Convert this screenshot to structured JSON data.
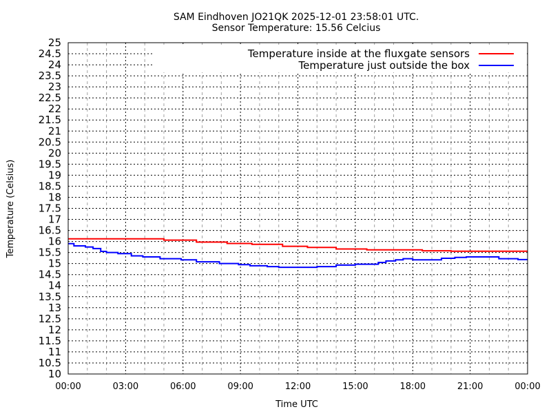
{
  "chart_data": {
    "type": "line",
    "title": "SAM Eindhoven JO21QK 2025-12-01 23:58:01 UTC.",
    "subtitle": "Sensor Temperature: 15.56 Celcius",
    "xlabel": "Time UTC",
    "ylabel": "Temperature (Celsius)",
    "xlim": [
      0,
      24
    ],
    "ylim": [
      10,
      25
    ],
    "x_ticks": [
      {
        "value": 0,
        "label": "00:00"
      },
      {
        "value": 3,
        "label": "03:00"
      },
      {
        "value": 6,
        "label": "06:00"
      },
      {
        "value": 9,
        "label": "09:00"
      },
      {
        "value": 12,
        "label": "12:00"
      },
      {
        "value": 15,
        "label": "15:00"
      },
      {
        "value": 18,
        "label": "18:00"
      },
      {
        "value": 21,
        "label": "21:00"
      },
      {
        "value": 24,
        "label": "00:00"
      }
    ],
    "y_ticks": [
      "10",
      "10.5",
      "11",
      "11.5",
      "12",
      "12.5",
      "13",
      "13.5",
      "14",
      "14.5",
      "15",
      "15.5",
      "16",
      "16.5",
      "17",
      "17.5",
      "18",
      "18.5",
      "19",
      "19.5",
      "20",
      "20.5",
      "21",
      "21.5",
      "22",
      "22.5",
      "23",
      "23.5",
      "24",
      "24.5",
      "25"
    ],
    "grid": true,
    "legend_position": "top-right",
    "series": [
      {
        "name": "Temperature inside at the fluxgate sensors",
        "color": "#ff0000",
        "x": [
          0,
          5.0,
          6.7,
          8.3,
          9.6,
          11.2,
          12.5,
          14.0,
          15.6,
          18.5,
          20.0,
          24
        ],
        "y": [
          16.12,
          16.06,
          15.97,
          15.91,
          15.87,
          15.78,
          15.73,
          15.66,
          15.62,
          15.58,
          15.56,
          15.56
        ]
      },
      {
        "name": "Temperature just outside the box",
        "color": "#0000ff",
        "x": [
          0,
          0.3,
          0.9,
          1.3,
          1.7,
          2.0,
          2.6,
          3.3,
          3.9,
          4.8,
          5.9,
          6.7,
          7.9,
          8.9,
          9.5,
          10.4,
          11.0,
          13.0,
          14.0,
          15.0,
          16.2,
          16.6,
          17.1,
          17.5,
          18.0,
          19.5,
          20.2,
          20.8,
          22.5,
          23.5,
          24
        ],
        "y": [
          15.9,
          15.8,
          15.75,
          15.68,
          15.55,
          15.5,
          15.45,
          15.35,
          15.3,
          15.22,
          15.17,
          15.08,
          15.0,
          14.95,
          14.9,
          14.86,
          14.83,
          14.86,
          14.93,
          14.97,
          15.05,
          15.12,
          15.17,
          15.22,
          15.17,
          15.24,
          15.28,
          15.3,
          15.22,
          15.18,
          15.18
        ]
      }
    ]
  }
}
